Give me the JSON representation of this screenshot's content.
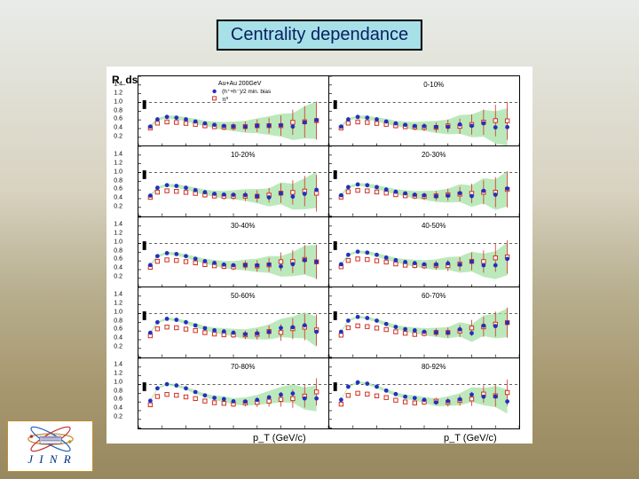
{
  "title": "Centrality dependance",
  "ylabel": "R_ds",
  "xlabel": "p_T  (GeV/c)",
  "legend": {
    "header": "Au+Au 200GeV",
    "items": [
      {
        "marker": "filled-circle",
        "color": "#2030c0",
        "label": "(h⁺+h⁻)/2   min. bias"
      },
      {
        "marker": "open-square",
        "color": "#d03020",
        "label": "π⁰"
      }
    ]
  },
  "axes": {
    "xlim": [
      0,
      8
    ],
    "xtick_step": 1,
    "ylim": [
      0,
      1.6
    ],
    "ytick_step": 0.2
  },
  "colors": {
    "blue": "#2030c0",
    "red": "#d03020",
    "band": "#a0e0a0",
    "axis": "#000000",
    "bg": "#ffffff"
  },
  "hline_y": 1.0,
  "panels": [
    {
      "label": "",
      "scale": 0.55,
      "show_legend": true
    },
    {
      "label": "0-10%",
      "scale": 0.55
    },
    {
      "label": "10-20%",
      "scale": 0.6
    },
    {
      "label": "20-30%",
      "scale": 0.62
    },
    {
      "label": "30-40%",
      "scale": 0.68
    },
    {
      "label": "40-50%",
      "scale": 0.72
    },
    {
      "label": "50-60%",
      "scale": 0.8
    },
    {
      "label": "60-70%",
      "scale": 0.85
    },
    {
      "label": "70-80%",
      "scale": 0.95
    },
    {
      "label": "80-92%",
      "scale": 1.0
    }
  ],
  "shape": {
    "x": [
      0.5,
      0.8,
      1.2,
      1.6,
      2.0,
      2.4,
      2.8,
      3.2,
      3.6,
      4.0,
      4.5,
      5.0,
      5.5,
      6.0,
      6.5,
      7.0,
      7.5
    ],
    "blue_y": [
      0.65,
      0.95,
      1.05,
      1.02,
      0.95,
      0.86,
      0.78,
      0.72,
      0.68,
      0.66,
      0.64,
      0.64,
      0.66,
      0.7,
      0.72,
      0.74,
      0.76
    ],
    "red_y": [
      0.55,
      0.75,
      0.8,
      0.78,
      0.74,
      0.7,
      0.64,
      0.6,
      0.58,
      0.58,
      0.6,
      0.62,
      0.66,
      0.7,
      0.74,
      0.78,
      0.8
    ],
    "jitter": [
      0.0,
      0.0,
      0.0,
      0.0,
      0.0,
      0.0,
      0.0,
      0.0,
      0.02,
      0.03,
      0.05,
      0.06,
      0.08,
      0.1,
      0.12,
      0.14,
      0.16
    ],
    "red_err": [
      0.02,
      0.02,
      0.02,
      0.02,
      0.03,
      0.03,
      0.04,
      0.04,
      0.05,
      0.06,
      0.08,
      0.1,
      0.12,
      0.16,
      0.2,
      0.25,
      0.3
    ],
    "band": [
      0.02,
      0.02,
      0.02,
      0.03,
      0.03,
      0.04,
      0.04,
      0.05,
      0.06,
      0.07,
      0.09,
      0.11,
      0.14,
      0.17,
      0.2,
      0.24,
      0.28
    ]
  },
  "logo_text": "J I N R",
  "font": {
    "title_size": 20,
    "panel_label_size": 8,
    "axis_label_size": 11,
    "tick_size": 7
  }
}
